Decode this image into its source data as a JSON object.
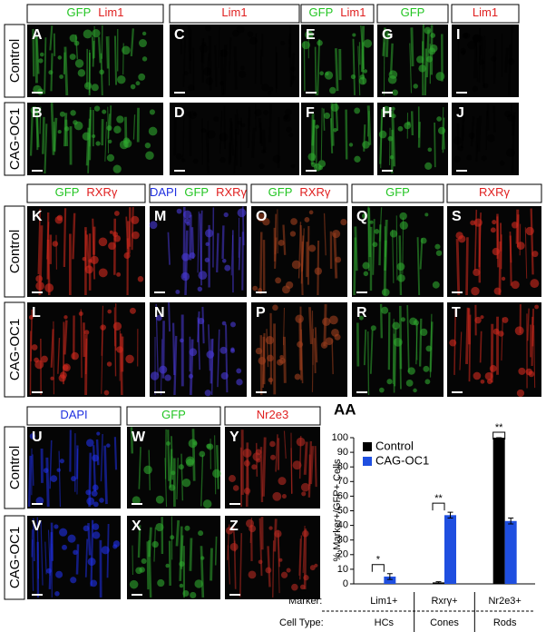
{
  "figure": {
    "blocks": [
      {
        "row_labels": [
          "Control",
          "CAG-OC1"
        ],
        "columns": [
          {
            "header": [
              {
                "text": "GFP",
                "color": "#22c522"
              },
              {
                "text": "Lim1",
                "color": "#e02020"
              }
            ],
            "panels": [
              "A",
              "B"
            ],
            "tint": "#2fa82f"
          },
          {
            "header": [
              {
                "text": "Lim1",
                "color": "#e02020"
              }
            ],
            "panels": [
              "C",
              "D"
            ],
            "tint": "#000000"
          },
          {
            "header": [
              {
                "text": "GFP",
                "color": "#22c522"
              },
              {
                "text": "Lim1",
                "color": "#e02020"
              }
            ],
            "panels": [
              "E",
              "F"
            ],
            "tint": "#2fa82f"
          },
          {
            "header": [
              {
                "text": "GFP",
                "color": "#22c522"
              }
            ],
            "panels": [
              "G",
              "H"
            ],
            "tint": "#2fa82f"
          },
          {
            "header": [
              {
                "text": "Lim1",
                "color": "#e02020"
              }
            ],
            "panels": [
              "I",
              "J"
            ],
            "tint": "#000000"
          }
        ]
      },
      {
        "row_labels": [
          "Control",
          "CAG-OC1"
        ],
        "columns": [
          {
            "header": [
              {
                "text": "GFP",
                "color": "#22c522"
              },
              {
                "text": "RXRγ",
                "color": "#e02020"
              }
            ],
            "panels": [
              "K",
              "L"
            ],
            "tint": "#d42a1e"
          },
          {
            "header": [
              {
                "text": "DAPI",
                "color": "#2030e0"
              },
              {
                "text": "GFP",
                "color": "#22c522"
              },
              {
                "text": "RXRγ",
                "color": "#e02020"
              }
            ],
            "panels": [
              "M",
              "N"
            ],
            "tint": "#4a3ad8"
          },
          {
            "header": [
              {
                "text": "GFP",
                "color": "#22c522"
              },
              {
                "text": "RXRγ",
                "color": "#e02020"
              }
            ],
            "panels": [
              "O",
              "P"
            ],
            "tint": "#a0401e"
          },
          {
            "header": [
              {
                "text": "GFP",
                "color": "#22c522"
              }
            ],
            "panels": [
              "Q",
              "R"
            ],
            "tint": "#2fa82f"
          },
          {
            "header": [
              {
                "text": "RXRγ",
                "color": "#e02020"
              }
            ],
            "panels": [
              "S",
              "T"
            ],
            "tint": "#d42a1e"
          }
        ]
      },
      {
        "row_labels": [
          "Control",
          "CAG-OC1"
        ],
        "columns": [
          {
            "header": [
              {
                "text": "DAPI",
                "color": "#2030e0"
              }
            ],
            "panels": [
              "U",
              "V"
            ],
            "tint": "#2030e8"
          },
          {
            "header": [
              {
                "text": "GFP",
                "color": "#22c522"
              }
            ],
            "panels": [
              "W",
              "X"
            ],
            "tint": "#2fa82f"
          },
          {
            "header": [
              {
                "text": "Nr2e3",
                "color": "#e02020"
              }
            ],
            "panels": [
              "Y",
              "Z"
            ],
            "tint": "#b82a22"
          }
        ]
      }
    ]
  },
  "chart_data": {
    "type": "bar",
    "title": "AA",
    "ylabel": "% Marker+/GFP+ Cells",
    "categories": [
      "Lim1+",
      "Rxrγ+",
      "Nr2e3+"
    ],
    "cell_types": [
      "HCs",
      "Cones",
      "Rods"
    ],
    "marker_label": "Marker:",
    "cell_type_label": "Cell Type:",
    "series": [
      {
        "name": "Control",
        "color": "#000000",
        "values": [
          0,
          1,
          100
        ],
        "errors": [
          0,
          0.5,
          0
        ]
      },
      {
        "name": "CAG-OC1",
        "color": "#1f4fe0",
        "values": [
          5,
          47,
          43
        ],
        "errors": [
          2,
          2,
          2
        ]
      }
    ],
    "significance": [
      "*",
      "**",
      "**"
    ],
    "ylim": [
      0,
      100
    ],
    "yticks": [
      0,
      10,
      20,
      30,
      40,
      50,
      60,
      70,
      80,
      90,
      100
    ],
    "legend": "upper left"
  }
}
